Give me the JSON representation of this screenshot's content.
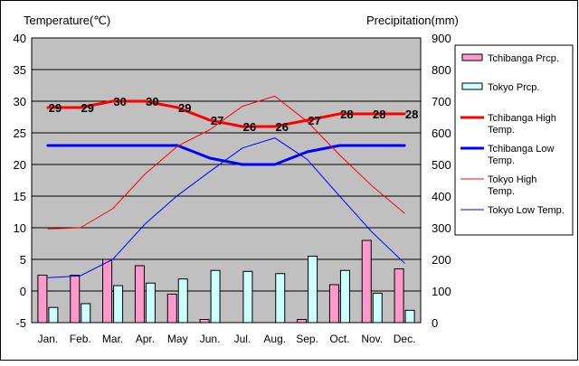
{
  "chart_data": {
    "type": "bar+line",
    "left_axis_title": "Temperature(℃)",
    "right_axis_title": "Precipitation(mm)",
    "categories": [
      "Jan.",
      "Feb.",
      "Mar.",
      "Apr.",
      "May",
      "Jun.",
      "Jul.",
      "Aug.",
      "Sep.",
      "Oct.",
      "Nov.",
      "Dec."
    ],
    "temp_ylim": [
      -5,
      40
    ],
    "temp_ticks": [
      -5,
      0,
      5,
      10,
      15,
      20,
      25,
      30,
      35,
      40
    ],
    "prcp_ylim": [
      0,
      900
    ],
    "prcp_ticks": [
      0,
      100,
      200,
      300,
      400,
      500,
      600,
      700,
      800,
      900
    ],
    "plot_background": "#c0c0c0",
    "grid": true,
    "legend_position": "right",
    "bar_series": [
      {
        "name": "Tchibanga Prcp.",
        "color": "#ff99cc",
        "values": [
          150,
          150,
          200,
          180,
          90,
          10,
          0,
          0,
          10,
          120,
          260,
          170
        ]
      },
      {
        "name": "Tokyo Prcp.",
        "color": "#ccffff",
        "values": [
          48,
          60,
          117,
          125,
          138,
          165,
          162,
          155,
          210,
          165,
          93,
          39
        ]
      }
    ],
    "line_series": [
      {
        "name": "Tchibanga High Temp.",
        "color": "#ff0000",
        "width": "thick",
        "values": [
          29,
          29,
          30,
          30,
          29,
          27,
          26,
          26,
          27,
          28,
          28,
          28
        ],
        "labels": [
          "29",
          "29",
          "30",
          "30",
          "29",
          "27",
          "26",
          "26",
          "27",
          "28",
          "28",
          "28"
        ]
      },
      {
        "name": "Tchibanga Low Temp.",
        "color": "#0000ff",
        "width": "thick",
        "values": [
          23,
          23,
          23,
          23,
          23,
          21,
          20,
          20,
          22,
          23,
          23,
          23
        ]
      },
      {
        "name": "Tokyo High Temp.",
        "color": "#ff0000",
        "width": "thin",
        "values": [
          9.8,
          10,
          13,
          18.5,
          22.9,
          25.5,
          29.2,
          30.8,
          26.8,
          21.5,
          16.6,
          12.3
        ]
      },
      {
        "name": "Tokyo Low Temp.",
        "color": "#0000ff",
        "width": "thin",
        "values": [
          2.1,
          2.4,
          5,
          10.6,
          15.1,
          18.9,
          22.6,
          24.2,
          20.8,
          15,
          9.3,
          4.4
        ]
      }
    ]
  }
}
